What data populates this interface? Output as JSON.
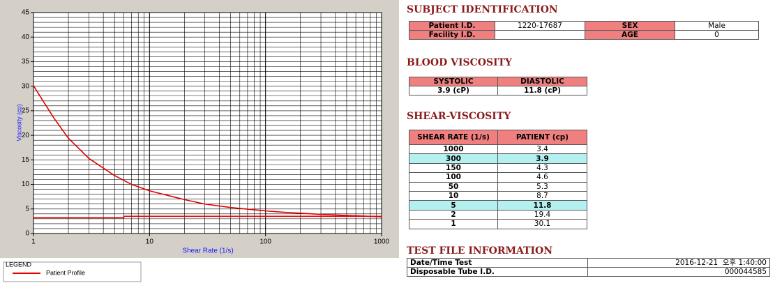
{
  "chart_data": {
    "type": "line",
    "x_label": "Shear Rate (1/s)",
    "y_label": "Viscosity (cp)",
    "legend_title": "LEGEND",
    "xlog": true,
    "xlim": [
      1,
      1000
    ],
    "xticks": [
      1,
      10,
      100,
      1000
    ],
    "ylim": [
      0,
      45
    ],
    "yticks": [
      0,
      5,
      10,
      15,
      20,
      25,
      30,
      35,
      40,
      45
    ],
    "grid": true,
    "series": [
      {
        "name": "Patient Profile",
        "color": "#e00000",
        "x": [
          1,
          1.5,
          2,
          3,
          5,
          7,
          10,
          20,
          30,
          50,
          100,
          150,
          300,
          1000
        ],
        "values": [
          30.1,
          23.5,
          19.4,
          15.3,
          11.8,
          10,
          8.7,
          6.9,
          6,
          5.3,
          4.6,
          4.3,
          3.9,
          3.4
        ]
      },
      {
        "color": "#e00000",
        "x": [
          1,
          6,
          6,
          1000
        ],
        "values": [
          3.2,
          3.2,
          3.5,
          3.5
        ]
      }
    ]
  },
  "subject_identification": {
    "title": "SUBJECT IDENTIFICATION",
    "patient_id_label": "Patient I.D.",
    "patient_id": "1220-17687",
    "sex_label": "SEX",
    "sex": "Male",
    "facility_id_label": "Facility I.D.",
    "age_label": "AGE",
    "age": "0"
  },
  "blood_viscosity": {
    "title": "BLOOD VISCOSITY",
    "headers": [
      "SYSTOLIC",
      "DIASTOLIC"
    ],
    "values": [
      "3.9 (cP)",
      "11.8 (cP)"
    ]
  },
  "shear_viscosity": {
    "title": "SHEAR-VISCOSITY",
    "headers": [
      "SHEAR RATE (1/s)",
      "PATIENT (cp)"
    ],
    "highlight_color": "#b4f0f0",
    "rows": [
      {
        "rate": "1000",
        "patient": "3.4"
      },
      {
        "rate": "300",
        "patient": "3.9",
        "highlight": true
      },
      {
        "rate": "150",
        "patient": "4.3"
      },
      {
        "rate": "100",
        "patient": "4.6"
      },
      {
        "rate": "50",
        "patient": "5.3"
      },
      {
        "rate": "10",
        "patient": "8.7"
      },
      {
        "rate": "5",
        "patient": "11.8",
        "highlight": true
      },
      {
        "rate": "2",
        "patient": "19.4"
      },
      {
        "rate": "1",
        "patient": "30.1"
      }
    ]
  },
  "test_file": {
    "title": "TEST FILE INFORMATION",
    "rows": [
      [
        "Date/Time Test",
        "2016-12-21  오후 1:40:00"
      ],
      [
        "Disposable Tube I.D.",
        "000044585"
      ]
    ]
  }
}
